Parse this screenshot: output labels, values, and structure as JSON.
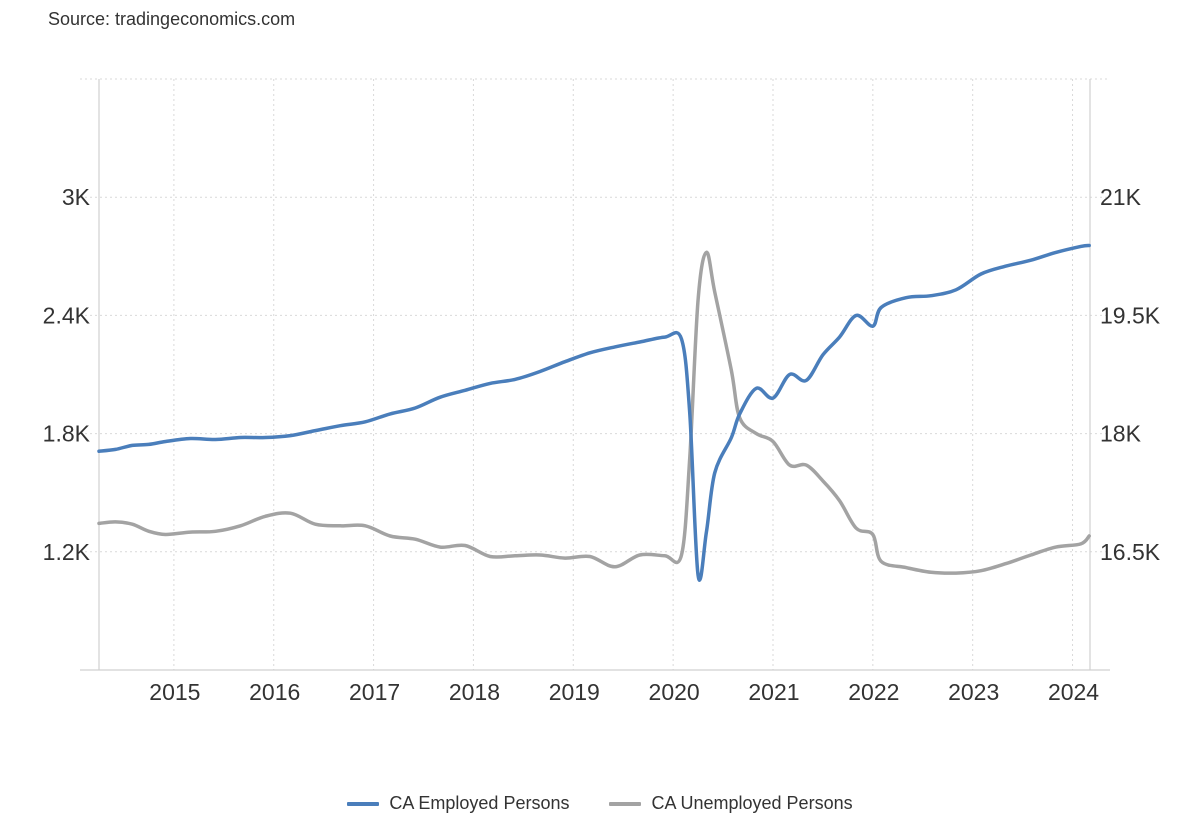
{
  "source": "Source: tradingeconomics.com",
  "colors": {
    "employed": "#4a7ebb",
    "unemployed": "#a3a3a3",
    "grid": "#d9d9d9",
    "axis": "#d0d0d0"
  },
  "chart_data": {
    "type": "line",
    "title": "",
    "xlabel": "",
    "x_tick_labels": [
      "2015",
      "2016",
      "2017",
      "2018",
      "2019",
      "2020",
      "2021",
      "2022",
      "2023",
      "2024"
    ],
    "y_left": {
      "ticks": [
        1200,
        1800,
        2400,
        3000
      ],
      "tick_labels": [
        "1.2K",
        "1.8K",
        "2.4K",
        "3K"
      ],
      "range": [
        600,
        3600
      ]
    },
    "y_right": {
      "ticks": [
        16500,
        18000,
        19500,
        21000
      ],
      "tick_labels": [
        "16.5K",
        "18K",
        "19.5K",
        "21K"
      ],
      "range": [
        15000,
        22500
      ]
    },
    "grid": true,
    "legend_position": "bottom-center",
    "series": [
      {
        "name": "CA Employed Persons",
        "axis": "left",
        "points": [
          [
            "2014-04",
            1710
          ],
          [
            "2014-06",
            1720
          ],
          [
            "2014-08",
            1740
          ],
          [
            "2014-10",
            1745
          ],
          [
            "2014-12",
            1760
          ],
          [
            "2015-03",
            1775
          ],
          [
            "2015-06",
            1770
          ],
          [
            "2015-09",
            1780
          ],
          [
            "2015-12",
            1780
          ],
          [
            "2016-03",
            1790
          ],
          [
            "2016-06",
            1815
          ],
          [
            "2016-09",
            1840
          ],
          [
            "2016-12",
            1860
          ],
          [
            "2017-03",
            1900
          ],
          [
            "2017-06",
            1930
          ],
          [
            "2017-09",
            1985
          ],
          [
            "2017-12",
            2020
          ],
          [
            "2018-03",
            2055
          ],
          [
            "2018-06",
            2075
          ],
          [
            "2018-09",
            2115
          ],
          [
            "2018-12",
            2165
          ],
          [
            "2019-03",
            2210
          ],
          [
            "2019-06",
            2240
          ],
          [
            "2019-09",
            2265
          ],
          [
            "2019-12",
            2290
          ],
          [
            "2020-02",
            2280
          ],
          [
            "2020-03",
            1900
          ],
          [
            "2020-04",
            1080
          ],
          [
            "2020-05",
            1300
          ],
          [
            "2020-06",
            1600
          ],
          [
            "2020-08",
            1780
          ],
          [
            "2020-09",
            1900
          ],
          [
            "2020-11",
            2030
          ],
          [
            "2021-01",
            1980
          ],
          [
            "2021-03",
            2100
          ],
          [
            "2021-05",
            2070
          ],
          [
            "2021-07",
            2200
          ],
          [
            "2021-09",
            2290
          ],
          [
            "2021-11",
            2400
          ],
          [
            "2022-01",
            2345
          ],
          [
            "2022-02",
            2440
          ],
          [
            "2022-05",
            2490
          ],
          [
            "2022-08",
            2500
          ],
          [
            "2022-11",
            2530
          ],
          [
            "2023-02",
            2610
          ],
          [
            "2023-05",
            2650
          ],
          [
            "2023-08",
            2680
          ],
          [
            "2023-11",
            2720
          ],
          [
            "2024-02",
            2750
          ],
          [
            "2024-03",
            2755
          ]
        ]
      },
      {
        "name": "CA Unemployed Persons",
        "axis": "right",
        "points": [
          [
            "2014-04",
            16860
          ],
          [
            "2014-06",
            16880
          ],
          [
            "2014-08",
            16850
          ],
          [
            "2014-10",
            16760
          ],
          [
            "2014-12",
            16720
          ],
          [
            "2015-03",
            16750
          ],
          [
            "2015-06",
            16760
          ],
          [
            "2015-09",
            16830
          ],
          [
            "2015-12",
            16950
          ],
          [
            "2016-03",
            16990
          ],
          [
            "2016-06",
            16850
          ],
          [
            "2016-09",
            16830
          ],
          [
            "2016-12",
            16830
          ],
          [
            "2017-03",
            16700
          ],
          [
            "2017-06",
            16660
          ],
          [
            "2017-09",
            16560
          ],
          [
            "2017-12",
            16580
          ],
          [
            "2018-03",
            16440
          ],
          [
            "2018-06",
            16450
          ],
          [
            "2018-09",
            16460
          ],
          [
            "2018-12",
            16420
          ],
          [
            "2019-03",
            16440
          ],
          [
            "2019-06",
            16310
          ],
          [
            "2019-09",
            16460
          ],
          [
            "2019-12",
            16450
          ],
          [
            "2020-02",
            16460
          ],
          [
            "2020-03",
            17700
          ],
          [
            "2020-04",
            19700
          ],
          [
            "2020-05",
            20300
          ],
          [
            "2020-06",
            19800
          ],
          [
            "2020-08",
            18800
          ],
          [
            "2020-09",
            18200
          ],
          [
            "2020-11",
            18000
          ],
          [
            "2021-01",
            17900
          ],
          [
            "2021-03",
            17600
          ],
          [
            "2021-05",
            17600
          ],
          [
            "2021-07",
            17400
          ],
          [
            "2021-09",
            17150
          ],
          [
            "2021-11",
            16800
          ],
          [
            "2022-01",
            16720
          ],
          [
            "2022-02",
            16380
          ],
          [
            "2022-05",
            16300
          ],
          [
            "2022-08",
            16240
          ],
          [
            "2022-11",
            16230
          ],
          [
            "2023-02",
            16260
          ],
          [
            "2023-05",
            16350
          ],
          [
            "2023-08",
            16460
          ],
          [
            "2023-11",
            16560
          ],
          [
            "2024-02",
            16600
          ],
          [
            "2024-03",
            16700
          ]
        ]
      }
    ]
  }
}
